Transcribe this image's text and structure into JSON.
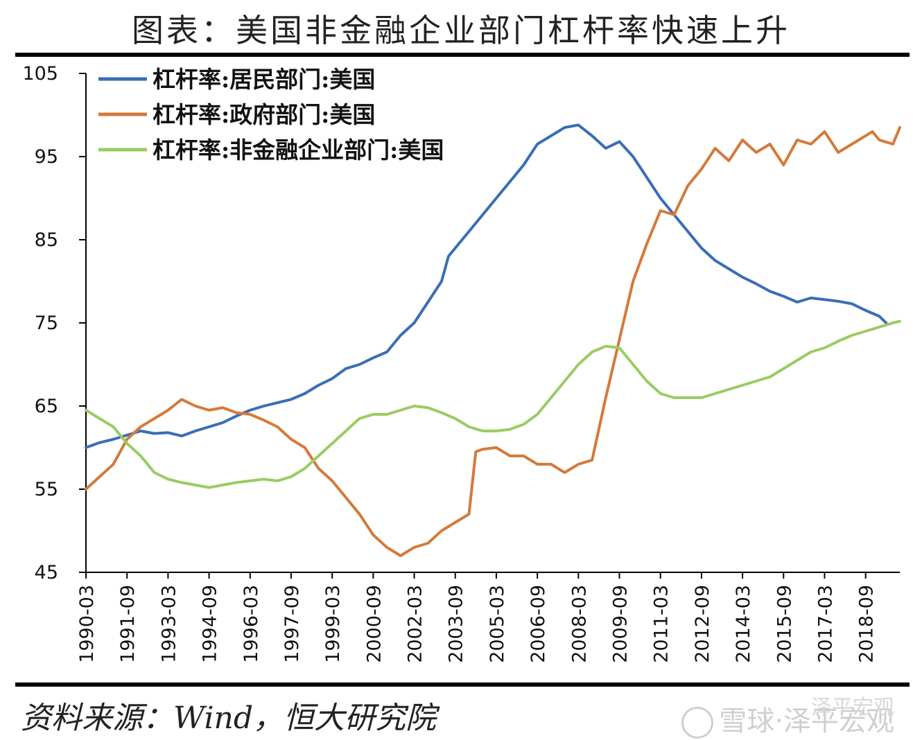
{
  "title": "图表：美国非金融企业部门杠杆率快速上升",
  "source": "资料来源：Wind，恒大研究院",
  "watermark": {
    "main": "雪球·泽平宏观",
    "top": "泽平宏观"
  },
  "chart_data": {
    "type": "line",
    "title": "图表：美国非金融企业部门杠杆率快速上升",
    "xlabel": "",
    "ylabel": "",
    "ylim": [
      45,
      105
    ],
    "y_ticks": [
      45,
      55,
      65,
      75,
      85,
      95,
      105
    ],
    "x_tick_labels": [
      "1990-03",
      "1991-09",
      "1993-03",
      "1994-09",
      "1996-03",
      "1997-09",
      "1999-03",
      "2000-09",
      "2002-03",
      "2003-09",
      "2005-03",
      "2006-09",
      "2008-03",
      "2009-09",
      "2011-03",
      "2012-09",
      "2014-03",
      "2015-09",
      "2017-03",
      "2018-09"
    ],
    "x_range": [
      1990.0,
      2019.75
    ],
    "grid": false,
    "legend_position": "top-left",
    "series": [
      {
        "name": "杠杆率:居民部门:美国",
        "color": "#3A6DB5",
        "points": [
          [
            1990.0,
            60.0
          ],
          [
            1990.5,
            60.6
          ],
          [
            1991.0,
            61.0
          ],
          [
            1991.5,
            61.5
          ],
          [
            1992.0,
            62.0
          ],
          [
            1992.5,
            61.7
          ],
          [
            1993.0,
            61.8
          ],
          [
            1993.5,
            61.4
          ],
          [
            1994.0,
            62.0
          ],
          [
            1994.5,
            62.5
          ],
          [
            1995.0,
            63.0
          ],
          [
            1995.5,
            63.8
          ],
          [
            1996.0,
            64.5
          ],
          [
            1996.5,
            65.0
          ],
          [
            1997.0,
            65.4
          ],
          [
            1997.5,
            65.8
          ],
          [
            1998.0,
            66.5
          ],
          [
            1998.5,
            67.5
          ],
          [
            1999.0,
            68.3
          ],
          [
            1999.5,
            69.5
          ],
          [
            2000.0,
            70.0
          ],
          [
            2000.5,
            70.8
          ],
          [
            2001.0,
            71.5
          ],
          [
            2001.5,
            73.5
          ],
          [
            2002.0,
            75.0
          ],
          [
            2002.5,
            77.5
          ],
          [
            2003.0,
            80.0
          ],
          [
            2003.25,
            83.0
          ],
          [
            2003.5,
            84.0
          ],
          [
            2004.0,
            86.0
          ],
          [
            2004.5,
            88.0
          ],
          [
            2005.0,
            90.0
          ],
          [
            2005.5,
            92.0
          ],
          [
            2006.0,
            94.0
          ],
          [
            2006.5,
            96.5
          ],
          [
            2007.0,
            97.5
          ],
          [
            2007.5,
            98.5
          ],
          [
            2008.0,
            98.8
          ],
          [
            2008.5,
            97.5
          ],
          [
            2009.0,
            96.0
          ],
          [
            2009.5,
            96.8
          ],
          [
            2010.0,
            95.0
          ],
          [
            2010.5,
            92.5
          ],
          [
            2011.0,
            90.0
          ],
          [
            2011.5,
            88.0
          ],
          [
            2012.0,
            86.0
          ],
          [
            2012.5,
            84.0
          ],
          [
            2013.0,
            82.5
          ],
          [
            2013.5,
            81.5
          ],
          [
            2014.0,
            80.5
          ],
          [
            2014.5,
            79.7
          ],
          [
            2015.0,
            78.8
          ],
          [
            2015.5,
            78.2
          ],
          [
            2016.0,
            77.5
          ],
          [
            2016.5,
            78.0
          ],
          [
            2017.0,
            77.8
          ],
          [
            2017.5,
            77.6
          ],
          [
            2018.0,
            77.3
          ],
          [
            2018.5,
            76.5
          ],
          [
            2019.0,
            75.8
          ],
          [
            2019.25,
            75.0
          ]
        ]
      },
      {
        "name": "杠杆率:政府部门:美国",
        "color": "#D47A3A",
        "points": [
          [
            1990.0,
            55.0
          ],
          [
            1990.5,
            56.5
          ],
          [
            1991.0,
            58.0
          ],
          [
            1991.5,
            61.0
          ],
          [
            1992.0,
            62.5
          ],
          [
            1992.5,
            63.5
          ],
          [
            1993.0,
            64.5
          ],
          [
            1993.5,
            65.8
          ],
          [
            1994.0,
            65.0
          ],
          [
            1994.5,
            64.5
          ],
          [
            1995.0,
            64.8
          ],
          [
            1995.5,
            64.2
          ],
          [
            1996.0,
            64.0
          ],
          [
            1996.5,
            63.3
          ],
          [
            1997.0,
            62.5
          ],
          [
            1997.5,
            61.0
          ],
          [
            1998.0,
            60.0
          ],
          [
            1998.5,
            57.5
          ],
          [
            1999.0,
            56.0
          ],
          [
            1999.5,
            54.0
          ],
          [
            2000.0,
            52.0
          ],
          [
            2000.5,
            49.5
          ],
          [
            2001.0,
            48.0
          ],
          [
            2001.5,
            47.0
          ],
          [
            2002.0,
            48.0
          ],
          [
            2002.5,
            48.5
          ],
          [
            2003.0,
            50.0
          ],
          [
            2003.5,
            51.0
          ],
          [
            2004.0,
            52.0
          ],
          [
            2004.25,
            59.5
          ],
          [
            2004.5,
            59.8
          ],
          [
            2005.0,
            60.0
          ],
          [
            2005.5,
            59.0
          ],
          [
            2006.0,
            59.0
          ],
          [
            2006.5,
            58.0
          ],
          [
            2007.0,
            58.0
          ],
          [
            2007.5,
            57.0
          ],
          [
            2008.0,
            58.0
          ],
          [
            2008.5,
            58.5
          ],
          [
            2009.0,
            66.0
          ],
          [
            2009.5,
            73.0
          ],
          [
            2010.0,
            80.0
          ],
          [
            2010.5,
            84.5
          ],
          [
            2011.0,
            88.5
          ],
          [
            2011.5,
            88.0
          ],
          [
            2012.0,
            91.5
          ],
          [
            2012.5,
            93.5
          ],
          [
            2013.0,
            96.0
          ],
          [
            2013.5,
            94.5
          ],
          [
            2014.0,
            97.0
          ],
          [
            2014.5,
            95.5
          ],
          [
            2015.0,
            96.5
          ],
          [
            2015.5,
            94.0
          ],
          [
            2016.0,
            97.0
          ],
          [
            2016.5,
            96.5
          ],
          [
            2017.0,
            98.0
          ],
          [
            2017.5,
            95.5
          ],
          [
            2018.0,
            96.5
          ],
          [
            2018.5,
            97.5
          ],
          [
            2018.75,
            98.0
          ],
          [
            2019.0,
            97.0
          ],
          [
            2019.5,
            96.5
          ],
          [
            2019.75,
            98.5
          ]
        ]
      },
      {
        "name": "杠杆率:非金融企业部门:美国",
        "color": "#9BCB62",
        "points": [
          [
            1990.0,
            64.5
          ],
          [
            1990.5,
            63.5
          ],
          [
            1991.0,
            62.5
          ],
          [
            1991.5,
            60.5
          ],
          [
            1992.0,
            59.0
          ],
          [
            1992.5,
            57.0
          ],
          [
            1993.0,
            56.2
          ],
          [
            1993.5,
            55.8
          ],
          [
            1994.0,
            55.5
          ],
          [
            1994.5,
            55.2
          ],
          [
            1995.0,
            55.5
          ],
          [
            1995.5,
            55.8
          ],
          [
            1996.0,
            56.0
          ],
          [
            1996.5,
            56.2
          ],
          [
            1997.0,
            56.0
          ],
          [
            1997.5,
            56.5
          ],
          [
            1998.0,
            57.5
          ],
          [
            1998.5,
            59.0
          ],
          [
            1999.0,
            60.5
          ],
          [
            1999.5,
            62.0
          ],
          [
            2000.0,
            63.5
          ],
          [
            2000.5,
            64.0
          ],
          [
            2001.0,
            64.0
          ],
          [
            2001.5,
            64.5
          ],
          [
            2002.0,
            65.0
          ],
          [
            2002.5,
            64.8
          ],
          [
            2003.0,
            64.2
          ],
          [
            2003.5,
            63.5
          ],
          [
            2004.0,
            62.5
          ],
          [
            2004.5,
            62.0
          ],
          [
            2005.0,
            62.0
          ],
          [
            2005.5,
            62.2
          ],
          [
            2006.0,
            62.8
          ],
          [
            2006.5,
            64.0
          ],
          [
            2007.0,
            66.0
          ],
          [
            2007.5,
            68.0
          ],
          [
            2008.0,
            70.0
          ],
          [
            2008.5,
            71.5
          ],
          [
            2009.0,
            72.2
          ],
          [
            2009.5,
            72.0
          ],
          [
            2010.0,
            70.0
          ],
          [
            2010.5,
            68.0
          ],
          [
            2011.0,
            66.5
          ],
          [
            2011.5,
            66.0
          ],
          [
            2012.0,
            66.0
          ],
          [
            2012.5,
            66.0
          ],
          [
            2013.0,
            66.5
          ],
          [
            2013.5,
            67.0
          ],
          [
            2014.0,
            67.5
          ],
          [
            2014.5,
            68.0
          ],
          [
            2015.0,
            68.5
          ],
          [
            2015.5,
            69.5
          ],
          [
            2016.0,
            70.5
          ],
          [
            2016.5,
            71.5
          ],
          [
            2017.0,
            72.0
          ],
          [
            2017.5,
            72.8
          ],
          [
            2018.0,
            73.5
          ],
          [
            2018.5,
            74.0
          ],
          [
            2019.0,
            74.5
          ],
          [
            2019.5,
            75.0
          ],
          [
            2019.75,
            75.2
          ]
        ]
      }
    ]
  }
}
